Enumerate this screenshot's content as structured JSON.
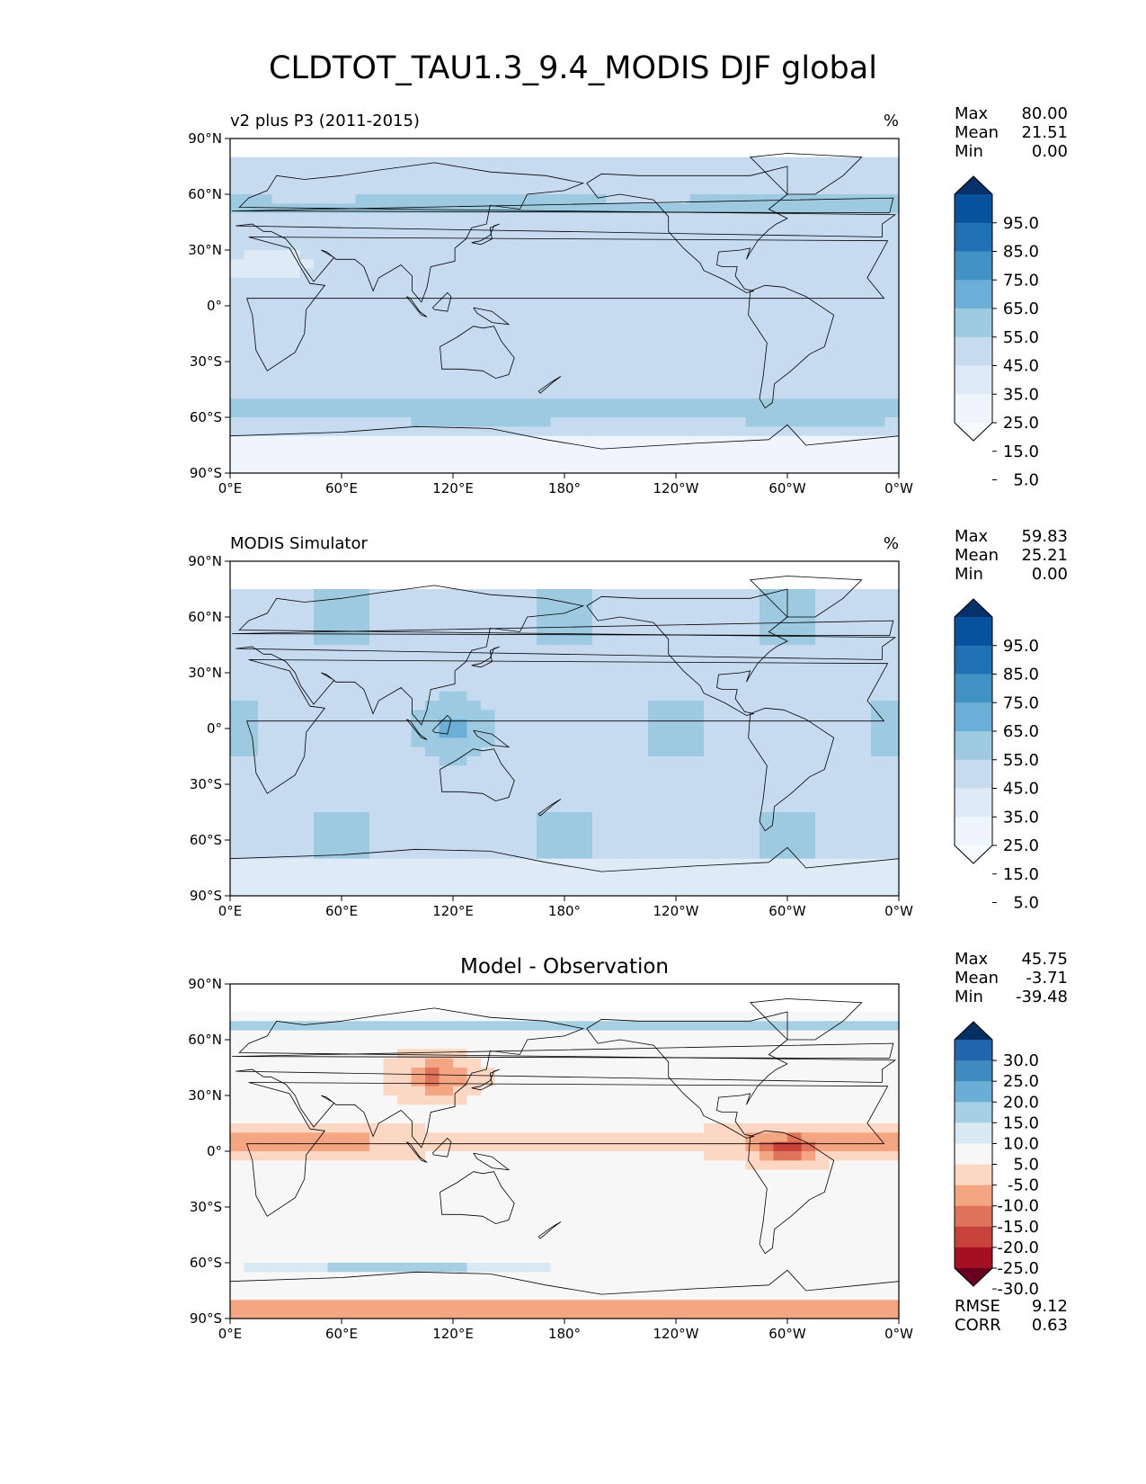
{
  "title": "CLDTOT_TAU1.3_9.4_MODIS DJF global",
  "x_ticks": [
    "0°E",
    "60°E",
    "120°E",
    "180°",
    "120°W",
    "60°W",
    "0°W"
  ],
  "y_ticks": [
    "90°N",
    "60°N",
    "30°N",
    "0°",
    "30°S",
    "60°S",
    "90°S"
  ],
  "chart_data": [
    {
      "type": "heatmap",
      "title": "v2 plus P3 (2011-2015)",
      "units": "%",
      "xlim": [
        0,
        360
      ],
      "ylim": [
        -90,
        90
      ],
      "stats": {
        "Max": "80.00",
        "Mean": "21.51",
        "Min": "0.00"
      },
      "colorbar": {
        "labels": [
          "95.0",
          "85.0",
          "75.0",
          "65.0",
          "55.0",
          "45.0",
          "35.0",
          "25.0",
          "15.0",
          "5.0"
        ],
        "colors": [
          "#08306b",
          "#08519c",
          "#2171b5",
          "#4292c6",
          "#6baed6",
          "#9ecae1",
          "#c6dbef",
          "#deebf7",
          "#eef5fc",
          "#f7fbff"
        ],
        "extend": "both"
      }
    },
    {
      "type": "heatmap",
      "title": "MODIS Simulator",
      "units": "%",
      "xlim": [
        0,
        360
      ],
      "ylim": [
        -90,
        90
      ],
      "stats": {
        "Max": "59.83",
        "Mean": "25.21",
        "Min": "0.00"
      },
      "colorbar": {
        "labels": [
          "95.0",
          "85.0",
          "75.0",
          "65.0",
          "55.0",
          "45.0",
          "35.0",
          "25.0",
          "15.0",
          "5.0"
        ],
        "colors": [
          "#08306b",
          "#08519c",
          "#2171b5",
          "#4292c6",
          "#6baed6",
          "#9ecae1",
          "#c6dbef",
          "#deebf7",
          "#eef5fc",
          "#f7fbff"
        ],
        "extend": "both"
      }
    },
    {
      "type": "heatmap",
      "title": "Model - Observation",
      "units": "",
      "xlim": [
        0,
        360
      ],
      "ylim": [
        -90,
        90
      ],
      "stats": {
        "Max": "45.75",
        "Mean": "-3.71",
        "Min": "-39.48"
      },
      "metrics": {
        "RMSE": "9.12",
        "CORR": "0.63"
      },
      "colorbar": {
        "labels": [
          "30.0",
          "25.0",
          "20.0",
          "15.0",
          "10.0",
          "5.0",
          "-5.0",
          "-10.0",
          "-15.0",
          "-20.0",
          "-25.0",
          "-30.0"
        ],
        "colors": [
          "#053061",
          "#2166ac",
          "#3f8ac0",
          "#6aaed6",
          "#a6cfe4",
          "#d9e9f3",
          "#f7f7f7",
          "#fbd7c4",
          "#f4a582",
          "#e0735c",
          "#c8423c",
          "#a50f23",
          "#67001f"
        ],
        "extend": "both"
      }
    }
  ]
}
